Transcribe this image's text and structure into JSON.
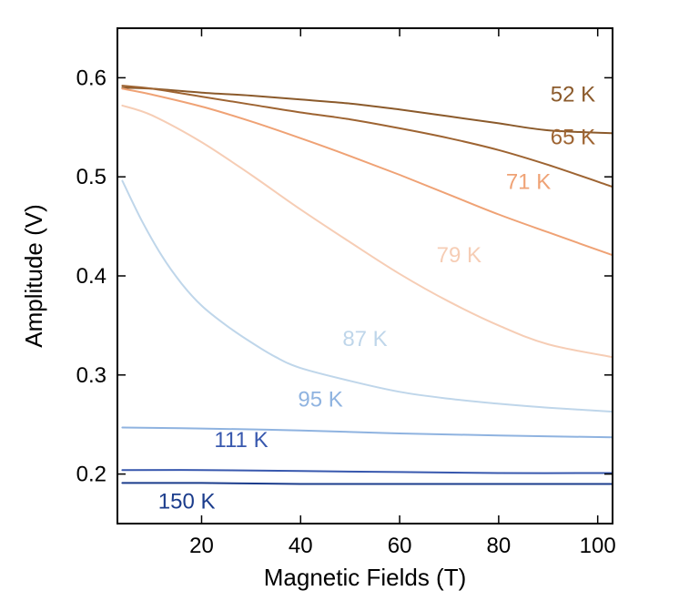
{
  "chart_data": {
    "type": "line",
    "title": "",
    "xlabel": "Magnetic Fields (T)",
    "ylabel": "Amplitude (V)",
    "xlim": [
      3,
      103
    ],
    "ylim": [
      0.15,
      0.65
    ],
    "xticks": [
      20,
      40,
      60,
      80,
      100
    ],
    "xtick_labels": [
      "20",
      "40",
      "60",
      "80",
      "100"
    ],
    "yticks": [
      0.2,
      0.3,
      0.4,
      0.5,
      0.6
    ],
    "ytick_labels": [
      "0.2",
      "0.3",
      "0.4",
      "0.5",
      "0.6"
    ],
    "grid": false,
    "series": [
      {
        "name": "52 K",
        "color": "#8B5A2B",
        "label_at": [
          95,
          0.576
        ],
        "points": [
          [
            4,
            0.59
          ],
          [
            10,
            0.589
          ],
          [
            20,
            0.585
          ],
          [
            30,
            0.582
          ],
          [
            40,
            0.578
          ],
          [
            50,
            0.574
          ],
          [
            60,
            0.568
          ],
          [
            70,
            0.561
          ],
          [
            80,
            0.554
          ],
          [
            90,
            0.547
          ],
          [
            103,
            0.544
          ]
        ]
      },
      {
        "name": "65 K",
        "color": "#9E6432",
        "label_at": [
          95,
          0.533
        ],
        "points": [
          [
            4,
            0.592
          ],
          [
            10,
            0.589
          ],
          [
            20,
            0.581
          ],
          [
            30,
            0.573
          ],
          [
            40,
            0.565
          ],
          [
            50,
            0.558
          ],
          [
            60,
            0.549
          ],
          [
            70,
            0.539
          ],
          [
            80,
            0.527
          ],
          [
            90,
            0.512
          ],
          [
            103,
            0.49
          ]
        ]
      },
      {
        "name": "71 K",
        "color": "#EFA275",
        "label_at": [
          86,
          0.488
        ],
        "points": [
          [
            4,
            0.589
          ],
          [
            10,
            0.583
          ],
          [
            20,
            0.571
          ],
          [
            30,
            0.556
          ],
          [
            40,
            0.539
          ],
          [
            50,
            0.521
          ],
          [
            60,
            0.502
          ],
          [
            70,
            0.482
          ],
          [
            80,
            0.462
          ],
          [
            90,
            0.444
          ],
          [
            103,
            0.421
          ]
        ]
      },
      {
        "name": "79 K",
        "color": "#F6CDB5",
        "label_at": [
          72,
          0.414
        ],
        "points": [
          [
            4,
            0.572
          ],
          [
            10,
            0.562
          ],
          [
            20,
            0.535
          ],
          [
            30,
            0.502
          ],
          [
            40,
            0.467
          ],
          [
            50,
            0.434
          ],
          [
            60,
            0.402
          ],
          [
            70,
            0.374
          ],
          [
            80,
            0.35
          ],
          [
            90,
            0.331
          ],
          [
            103,
            0.318
          ]
        ]
      },
      {
        "name": "87 K",
        "color": "#BFD6EA",
        "label_at": [
          53,
          0.329
        ],
        "points": [
          [
            4,
            0.496
          ],
          [
            8,
            0.455
          ],
          [
            12,
            0.42
          ],
          [
            16,
            0.392
          ],
          [
            20,
            0.37
          ],
          [
            25,
            0.35
          ],
          [
            30,
            0.333
          ],
          [
            35,
            0.318
          ],
          [
            40,
            0.307
          ],
          [
            50,
            0.294
          ],
          [
            60,
            0.283
          ],
          [
            70,
            0.276
          ],
          [
            80,
            0.271
          ],
          [
            90,
            0.267
          ],
          [
            103,
            0.263
          ]
        ]
      },
      {
        "name": "95 K",
        "color": "#8FB3E0",
        "label_at": [
          44,
          0.268
        ],
        "points": [
          [
            4,
            0.247
          ],
          [
            20,
            0.246
          ],
          [
            40,
            0.244
          ],
          [
            60,
            0.241
          ],
          [
            80,
            0.239
          ],
          [
            103,
            0.237
          ]
        ]
      },
      {
        "name": "111 K",
        "color": "#3858AE",
        "label_at": [
          28,
          0.227
        ],
        "points": [
          [
            4,
            0.204
          ],
          [
            20,
            0.204
          ],
          [
            40,
            0.203
          ],
          [
            60,
            0.202
          ],
          [
            80,
            0.201
          ],
          [
            103,
            0.201
          ]
        ]
      },
      {
        "name": "150 K",
        "color": "#1B3C8C",
        "label_at": [
          17,
          0.165
        ],
        "points": [
          [
            4,
            0.191
          ],
          [
            20,
            0.191
          ],
          [
            40,
            0.19
          ],
          [
            60,
            0.19
          ],
          [
            80,
            0.19
          ],
          [
            103,
            0.19
          ]
        ]
      }
    ]
  }
}
